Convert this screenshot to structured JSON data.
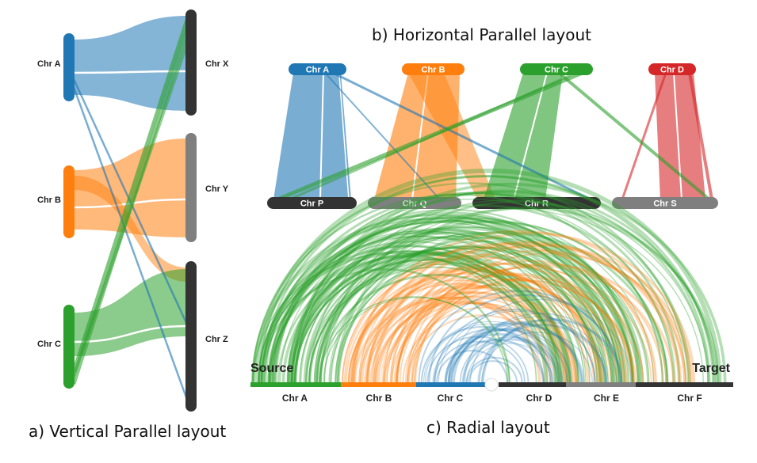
{
  "colors": {
    "blue": "#1f77b4",
    "orange": "#ff7f0e",
    "green": "#2ca02c",
    "red": "#d62728",
    "gray": "#7f7f7f",
    "dark": "#333333"
  },
  "captions": {
    "vertical": "a) Vertical Parallel layout",
    "horizontal": "b) Horizontal Parallel layout",
    "radial": "c) Radial layout"
  },
  "vertical": {
    "left": [
      {
        "label": "Chr A",
        "color": "blue"
      },
      {
        "label": "Chr B",
        "color": "orange"
      },
      {
        "label": "Chr C",
        "color": "green"
      }
    ],
    "right": [
      {
        "label": "Chr X",
        "color": "dark"
      },
      {
        "label": "Chr Y",
        "color": "gray"
      },
      {
        "label": "Chr Z",
        "color": "dark"
      }
    ]
  },
  "horizontal": {
    "top": [
      {
        "label": "Chr A",
        "color": "blue"
      },
      {
        "label": "Chr B",
        "color": "orange"
      },
      {
        "label": "Chr C",
        "color": "green"
      },
      {
        "label": "Chr D",
        "color": "red"
      }
    ],
    "bottom": [
      {
        "label": "Chr P",
        "color": "dark"
      },
      {
        "label": "Chr Q",
        "color": "gray"
      },
      {
        "label": "Chr R",
        "color": "dark"
      },
      {
        "label": "Chr S",
        "color": "gray"
      }
    ]
  },
  "radial": {
    "source_label": "Source",
    "target_label": "Target",
    "chromosomes": [
      {
        "label": "Chr A",
        "color": "green"
      },
      {
        "label": "Chr B",
        "color": "orange"
      },
      {
        "label": "Chr C",
        "color": "blue"
      },
      {
        "label": "Chr D",
        "color": "dark"
      },
      {
        "label": "Chr E",
        "color": "gray"
      },
      {
        "label": "Chr F",
        "color": "dark"
      }
    ]
  }
}
